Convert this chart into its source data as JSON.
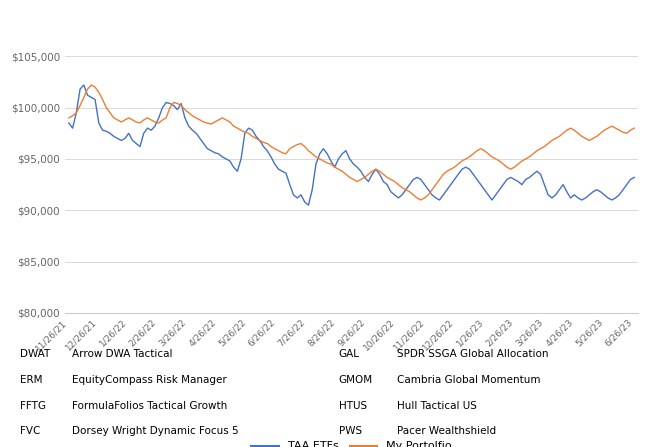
{
  "x_labels": [
    "11/26/21",
    "12/26/21",
    "1/26/22",
    "2/26/22",
    "3/26/22",
    "4/26/22",
    "5/26/22",
    "6/26/22",
    "7/26/22",
    "8/26/22",
    "9/26/22",
    "10/26/22",
    "11/26/22",
    "12/26/22",
    "1/26/23",
    "2/26/23",
    "3/26/23",
    "4/26/23",
    "5/26/23",
    "6/26/23"
  ],
  "taa_color": "#4472C4",
  "portfolio_color": "#ED7D31",
  "ylim": [
    80000,
    107000
  ],
  "yticks": [
    80000,
    85000,
    90000,
    95000,
    100000,
    105000
  ],
  "grid_color": "#D3D3D3",
  "legend_labels": [
    "TAA ETFs",
    "My Portolfio"
  ],
  "footnotes_left": [
    [
      "DWAT",
      "Arrow DWA Tactical"
    ],
    [
      "ERM",
      "EquityCompass Risk Manager"
    ],
    [
      "FFTG",
      "FormulaFolios Tactical Growth"
    ],
    [
      "FVC",
      "Dorsey Wright Dynamic Focus 5"
    ]
  ],
  "footnotes_right": [
    [
      "GAL",
      "SPDR SSGA Global Allocation"
    ],
    [
      "GMOM",
      "Cambria Global Momentum"
    ],
    [
      "HTUS",
      "Hull Tactical US"
    ],
    [
      "PWS",
      "Pacer Wealthshield"
    ]
  ],
  "taa_vals": [
    98500,
    98000,
    99500,
    101800,
    102200,
    101200,
    101000,
    100800,
    98500,
    97800,
    97700,
    97500,
    97200,
    97000,
    96800,
    97000,
    97500,
    96800,
    96500,
    96200,
    97500,
    98000,
    97800,
    98200,
    99000,
    100000,
    100500,
    100400,
    100200,
    99800,
    100400,
    99000,
    98200,
    97800,
    97500,
    97000,
    96500,
    96000,
    95800,
    95600,
    95500,
    95200,
    95000,
    94800,
    94200,
    93800,
    95000,
    97500,
    98000,
    97800,
    97200,
    96800,
    96200,
    95800,
    95200,
    94500,
    94000,
    93800,
    93600,
    92500,
    91500,
    91200,
    91500,
    90800,
    90500,
    92000,
    94500,
    95500,
    96000,
    95500,
    94800,
    94200,
    95000,
    95500,
    95800,
    95000,
    94500,
    94200,
    93800,
    93200,
    92800,
    93500,
    94000,
    93500,
    92800,
    92500,
    91800,
    91500,
    91200,
    91500,
    92000,
    92500,
    93000,
    93200,
    93000,
    92500,
    92000,
    91500,
    91200,
    91000,
    91500,
    92000,
    92500,
    93000,
    93500,
    94000,
    94200,
    94000,
    93500,
    93000,
    92500,
    92000,
    91500,
    91000,
    91500,
    92000,
    92500,
    93000,
    93200,
    93000,
    92800,
    92500,
    93000,
    93200,
    93500,
    93800,
    93500,
    92500,
    91500,
    91200,
    91500,
    92000,
    92500,
    91800,
    91200,
    91500,
    91200,
    91000,
    91200,
    91500,
    91800,
    92000,
    91800,
    91500,
    91200,
    91000,
    91200,
    91500,
    92000,
    92500,
    93000,
    93200
  ],
  "port_vals": [
    99000,
    99200,
    99500,
    100200,
    101000,
    101800,
    102200,
    102000,
    101500,
    100800,
    100000,
    99500,
    99000,
    98800,
    98600,
    98800,
    99000,
    98800,
    98600,
    98500,
    98800,
    99000,
    98800,
    98600,
    98500,
    98800,
    99000,
    100000,
    100500,
    100400,
    100200,
    99800,
    99500,
    99200,
    99000,
    98800,
    98600,
    98500,
    98400,
    98600,
    98800,
    99000,
    98800,
    98600,
    98200,
    98000,
    97800,
    97600,
    97500,
    97200,
    97000,
    96800,
    96600,
    96500,
    96200,
    96000,
    95800,
    95600,
    95500,
    96000,
    96200,
    96400,
    96500,
    96200,
    95800,
    95500,
    95200,
    95000,
    94800,
    94600,
    94500,
    94200,
    94000,
    93800,
    93500,
    93200,
    93000,
    92800,
    93000,
    93200,
    93500,
    93800,
    94000,
    93800,
    93500,
    93200,
    93000,
    92800,
    92500,
    92200,
    92000,
    91800,
    91500,
    91200,
    91000,
    91200,
    91500,
    92000,
    92500,
    93000,
    93500,
    93800,
    94000,
    94200,
    94500,
    94800,
    95000,
    95200,
    95500,
    95800,
    96000,
    95800,
    95500,
    95200,
    95000,
    94800,
    94500,
    94200,
    94000,
    94200,
    94500,
    94800,
    95000,
    95200,
    95500,
    95800,
    96000,
    96200,
    96500,
    96800,
    97000,
    97200,
    97500,
    97800,
    98000,
    97800,
    97500,
    97200,
    97000,
    96800,
    97000,
    97200,
    97500,
    97800,
    98000,
    98200,
    98000,
    97800,
    97600,
    97500,
    97800,
    98000
  ]
}
